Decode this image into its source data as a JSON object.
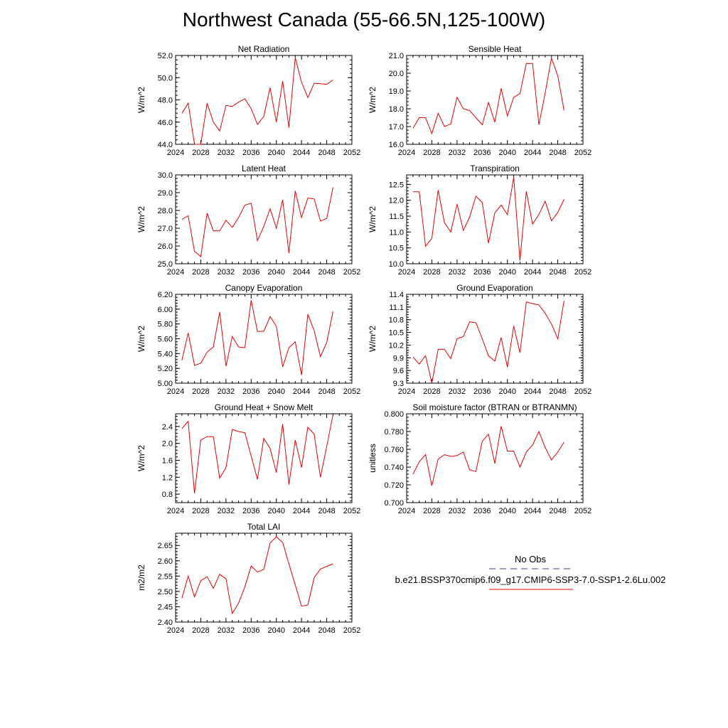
{
  "title": "Northwest Canada (55-66.5N,125-100W)",
  "legend": {
    "obs_label": "No Obs",
    "model_label": "b.e21.BSSP370cmip6.f09_g17.CMIP6-SSP3-7.0-SSP1-2.6Lu.002",
    "obs_color": "#3a3aa8",
    "model_color": "#e60000"
  },
  "chart_data": [
    {
      "type": "line",
      "title": "Net Radiation",
      "ylabel": "W/m^2",
      "xlim": [
        2024,
        2052
      ],
      "ylim": [
        44.0,
        52.0
      ],
      "xticks": [
        "2024",
        "2028",
        "2032",
        "2036",
        "2040",
        "2044",
        "2048",
        "2052"
      ],
      "yticks": [
        "44.0",
        "46.0",
        "48.0",
        "50.0",
        "52.0"
      ],
      "x": [
        2025,
        2026,
        2027,
        2028,
        2029,
        2030,
        2031,
        2032,
        2033,
        2034,
        2035,
        2036,
        2037,
        2038,
        2039,
        2040,
        2041,
        2042,
        2043,
        2044,
        2045,
        2046,
        2047,
        2048,
        2049
      ],
      "series": [
        {
          "values": [
            46.8,
            47.7,
            44.0,
            44.0,
            47.7,
            46.0,
            45.2,
            47.5,
            47.4,
            47.8,
            48.1,
            47.2,
            45.8,
            46.5,
            49.1,
            46.0,
            49.7,
            45.5,
            51.8,
            49.6,
            48.2,
            49.5,
            49.45,
            49.4,
            49.8
          ]
        }
      ]
    },
    {
      "type": "line",
      "title": "Sensible Heat",
      "ylabel": "W/m^2",
      "xlim": [
        2024,
        2052
      ],
      "ylim": [
        16.0,
        21.0
      ],
      "xticks": [
        "2024",
        "2028",
        "2032",
        "2036",
        "2040",
        "2044",
        "2048",
        "2052"
      ],
      "yticks": [
        "16.0",
        "17.0",
        "18.0",
        "19.0",
        "20.0",
        "21.0"
      ],
      "x": [
        2025,
        2026,
        2027,
        2028,
        2029,
        2030,
        2031,
        2032,
        2033,
        2034,
        2035,
        2036,
        2037,
        2038,
        2039,
        2040,
        2041,
        2042,
        2043,
        2044,
        2045,
        2046,
        2047,
        2048,
        2049
      ],
      "series": [
        {
          "values": [
            16.9,
            17.5,
            17.5,
            16.6,
            17.75,
            17.0,
            17.15,
            18.65,
            18.0,
            17.9,
            17.5,
            17.1,
            18.35,
            17.25,
            19.15,
            17.6,
            18.65,
            18.85,
            20.55,
            20.55,
            17.1,
            18.9,
            20.85,
            19.85,
            17.9
          ]
        }
      ]
    },
    {
      "type": "line",
      "title": "Latent Heat",
      "ylabel": "W/m^2",
      "xlim": [
        2024,
        2052
      ],
      "ylim": [
        25.0,
        30.0
      ],
      "xticks": [
        "2024",
        "2028",
        "2032",
        "2036",
        "2040",
        "2044",
        "2048",
        "2052"
      ],
      "yticks": [
        "25.0",
        "26.0",
        "27.0",
        "28.0",
        "29.0",
        "30.0"
      ],
      "x": [
        2025,
        2026,
        2027,
        2028,
        2029,
        2030,
        2031,
        2032,
        2033,
        2034,
        2035,
        2036,
        2037,
        2038,
        2039,
        2040,
        2041,
        2042,
        2043,
        2044,
        2045,
        2046,
        2047,
        2048,
        2049
      ],
      "series": [
        {
          "values": [
            27.5,
            27.7,
            25.7,
            25.4,
            27.85,
            26.85,
            26.85,
            27.45,
            27.05,
            27.6,
            28.3,
            28.4,
            26.3,
            27.1,
            28.1,
            27.0,
            28.6,
            25.6,
            29.1,
            27.6,
            28.7,
            28.65,
            27.4,
            27.55,
            29.3
          ]
        }
      ]
    },
    {
      "type": "line",
      "title": "Transpiration",
      "ylabel": "W/m^2",
      "xlim": [
        2024,
        2052
      ],
      "ylim": [
        10.0,
        12.8
      ],
      "xticks": [
        "2024",
        "2028",
        "2032",
        "2036",
        "2040",
        "2044",
        "2048",
        "2052"
      ],
      "yticks": [
        "10.0",
        "10.5",
        "11.0",
        "11.5",
        "12.0",
        "12.5"
      ],
      "x": [
        2025,
        2026,
        2027,
        2028,
        2029,
        2030,
        2031,
        2032,
        2033,
        2034,
        2035,
        2036,
        2037,
        2038,
        2039,
        2040,
        2041,
        2042,
        2043,
        2044,
        2045,
        2046,
        2047,
        2048,
        2049
      ],
      "series": [
        {
          "values": [
            12.27,
            12.27,
            10.55,
            10.8,
            12.32,
            11.3,
            11.0,
            11.88,
            11.05,
            11.47,
            12.13,
            11.93,
            10.65,
            11.6,
            11.85,
            11.55,
            12.72,
            10.1,
            12.28,
            11.25,
            11.55,
            11.97,
            11.35,
            11.62,
            12.03
          ]
        }
      ]
    },
    {
      "type": "line",
      "title": "Canopy Evaporation",
      "ylabel": "W/m^2",
      "xlim": [
        2024,
        2052
      ],
      "ylim": [
        5.0,
        6.2
      ],
      "xticks": [
        "2024",
        "2028",
        "2032",
        "2036",
        "2040",
        "2044",
        "2048",
        "2052"
      ],
      "yticks": [
        "5.00",
        "5.20",
        "5.40",
        "5.60",
        "5.80",
        "6.00",
        "6.20"
      ],
      "x": [
        2025,
        2026,
        2027,
        2028,
        2029,
        2030,
        2031,
        2032,
        2033,
        2034,
        2035,
        2036,
        2037,
        2038,
        2039,
        2040,
        2041,
        2042,
        2043,
        2044,
        2045,
        2046,
        2047,
        2048,
        2049
      ],
      "series": [
        {
          "values": [
            5.31,
            5.68,
            5.24,
            5.27,
            5.42,
            5.49,
            5.96,
            5.23,
            5.63,
            5.49,
            5.48,
            6.12,
            5.7,
            5.7,
            5.9,
            5.77,
            5.22,
            5.48,
            5.56,
            5.11,
            5.93,
            5.71,
            5.36,
            5.55,
            5.97
          ]
        }
      ]
    },
    {
      "type": "line",
      "title": "Ground Evaporation",
      "ylabel": "W/m^2",
      "xlim": [
        2024,
        2052
      ],
      "ylim": [
        9.3,
        11.4
      ],
      "xticks": [
        "2024",
        "2028",
        "2032",
        "2036",
        "2040",
        "2044",
        "2048",
        "2052"
      ],
      "yticks": [
        "9.3",
        "9.6",
        "9.9",
        "10.2",
        "10.5",
        "10.8",
        "11.1",
        "11.4"
      ],
      "x": [
        2025,
        2026,
        2027,
        2028,
        2029,
        2030,
        2031,
        2032,
        2033,
        2034,
        2035,
        2036,
        2037,
        2038,
        2039,
        2040,
        2041,
        2042,
        2043,
        2044,
        2045,
        2046,
        2047,
        2048,
        2049
      ],
      "series": [
        {
          "values": [
            9.92,
            9.75,
            9.95,
            9.3,
            10.1,
            10.1,
            9.88,
            10.35,
            10.4,
            10.75,
            10.73,
            10.35,
            9.95,
            9.82,
            10.38,
            9.68,
            10.65,
            10.02,
            11.22,
            11.18,
            11.15,
            10.95,
            10.7,
            10.35,
            11.25
          ]
        }
      ]
    },
    {
      "type": "line",
      "title": "Ground Heat + Snow Melt",
      "ylabel": "W/m^2",
      "xlim": [
        2024,
        2052
      ],
      "ylim": [
        0.6,
        2.7
      ],
      "xticks": [
        "2024",
        "2028",
        "2032",
        "2036",
        "2040",
        "2044",
        "2048",
        "2052"
      ],
      "yticks": [
        "0.8",
        "1.2",
        "1.6",
        "2.0",
        "2.4"
      ],
      "x": [
        2025,
        2026,
        2027,
        2028,
        2029,
        2030,
        2031,
        2032,
        2033,
        2034,
        2035,
        2036,
        2037,
        2038,
        2039,
        2040,
        2041,
        2042,
        2043,
        2044,
        2045,
        2046,
        2047,
        2048,
        2049
      ],
      "series": [
        {
          "values": [
            2.35,
            2.52,
            0.82,
            2.08,
            2.16,
            2.16,
            1.18,
            1.43,
            2.33,
            2.28,
            2.25,
            1.7,
            1.15,
            2.12,
            1.88,
            1.31,
            2.46,
            1.03,
            2.08,
            1.43,
            2.38,
            2.22,
            1.2,
            1.93,
            2.68
          ]
        }
      ]
    },
    {
      "type": "line",
      "title": "Soil moisture factor (BTRAN or BTRANMN)",
      "ylabel": "unitless",
      "xlim": [
        2024,
        2052
      ],
      "ylim": [
        0.7,
        0.8
      ],
      "xticks": [
        "2024",
        "2028",
        "2032",
        "2036",
        "2040",
        "2044",
        "2048",
        "2052"
      ],
      "yticks": [
        "0.700",
        "0.720",
        "0.740",
        "0.760",
        "0.780",
        "0.800"
      ],
      "x": [
        2025,
        2026,
        2027,
        2028,
        2029,
        2030,
        2031,
        2032,
        2033,
        2034,
        2035,
        2036,
        2037,
        2038,
        2039,
        2040,
        2041,
        2042,
        2043,
        2044,
        2045,
        2046,
        2047,
        2048,
        2049
      ],
      "series": [
        {
          "values": [
            0.732,
            0.746,
            0.754,
            0.719,
            0.749,
            0.754,
            0.752,
            0.753,
            0.757,
            0.737,
            0.735,
            0.769,
            0.777,
            0.744,
            0.786,
            0.758,
            0.758,
            0.74,
            0.757,
            0.765,
            0.78,
            0.762,
            0.748,
            0.757,
            0.768
          ]
        }
      ]
    },
    {
      "type": "line",
      "title": "Total LAI",
      "ylabel": "m2/m2",
      "xlim": [
        2024,
        2052
      ],
      "ylim": [
        2.4,
        2.69
      ],
      "xticks": [
        "2024",
        "2028",
        "2032",
        "2036",
        "2040",
        "2044",
        "2048",
        "2052"
      ],
      "yticks": [
        "2.40",
        "2.45",
        "2.50",
        "2.55",
        "2.60",
        "2.65"
      ],
      "x": [
        2025,
        2026,
        2027,
        2028,
        2029,
        2030,
        2031,
        2032,
        2033,
        2034,
        2035,
        2036,
        2037,
        2038,
        2039,
        2040,
        2041,
        2042,
        2043,
        2044,
        2045,
        2046,
        2047,
        2048,
        2049
      ],
      "series": [
        {
          "values": [
            2.478,
            2.55,
            2.482,
            2.535,
            2.548,
            2.51,
            2.556,
            2.541,
            2.428,
            2.462,
            2.515,
            2.583,
            2.563,
            2.572,
            2.658,
            2.678,
            2.66,
            2.59,
            2.521,
            2.452,
            2.456,
            2.545,
            2.573,
            2.582,
            2.59
          ]
        }
      ]
    }
  ]
}
